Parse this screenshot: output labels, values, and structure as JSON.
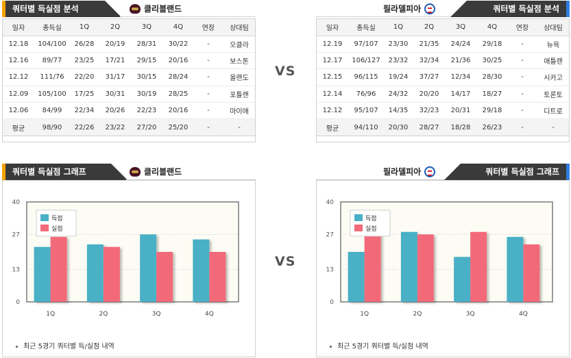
{
  "vs_label": "VS",
  "columns": [
    "일자",
    "총득실",
    "1Q",
    "2Q",
    "3Q",
    "4Q",
    "연장",
    "상대팀"
  ],
  "left": {
    "section_title": "쿼터별 득실점 분석",
    "team": "클리블랜드",
    "rows": [
      [
        "12.18",
        "104/100",
        "26/28",
        "20/19",
        "28/31",
        "30/22",
        "-",
        "오클라"
      ],
      [
        "12.16",
        "89/77",
        "23/25",
        "17/21",
        "29/15",
        "20/16",
        "-",
        "보스톤"
      ],
      [
        "12.12",
        "111/76",
        "22/20",
        "31/17",
        "30/15",
        "28/24",
        "-",
        "올랜도"
      ],
      [
        "12.09",
        "105/100",
        "17/25",
        "30/31",
        "30/19",
        "28/25",
        "-",
        "포틀랜"
      ],
      [
        "12.06",
        "84/99",
        "22/34",
        "20/26",
        "22/23",
        "20/16",
        "-",
        "마이애"
      ]
    ],
    "avg": [
      "평균",
      "98/90",
      "22/26",
      "23/22",
      "27/20",
      "25/20",
      "-",
      "-"
    ],
    "accent_color": "#f5a300"
  },
  "right": {
    "section_title": "쿼터별 득실점 분석",
    "team": "필라델피아",
    "rows": [
      [
        "12.19",
        "97/107",
        "23/30",
        "21/35",
        "24/24",
        "29/18",
        "-",
        "뉴욕"
      ],
      [
        "12.17",
        "106/127",
        "23/32",
        "32/34",
        "21/36",
        "30/25",
        "-",
        "애틀랜"
      ],
      [
        "12.15",
        "96/115",
        "19/24",
        "37/27",
        "12/34",
        "28/30",
        "-",
        "시카고"
      ],
      [
        "12.14",
        "76/96",
        "24/32",
        "20/20",
        "14/17",
        "18/27",
        "-",
        "토론토"
      ],
      [
        "12.12",
        "95/107",
        "14/35",
        "32/23",
        "20/31",
        "29/18",
        "-",
        "디트로"
      ]
    ],
    "avg": [
      "평균",
      "94/110",
      "20/30",
      "28/27",
      "18/28",
      "26/23",
      "-",
      "-"
    ],
    "accent_color": "#2f7de0"
  },
  "graph_left": {
    "section_title": "쿼터별 득실점 그래프",
    "team": "클리블랜드",
    "note": "최근 5경기 쿼터별 득/실점 내역"
  },
  "graph_right": {
    "section_title": "쿼터별 득실점 그래프",
    "team": "필라델피아",
    "note": "최근 5경기 쿼터별 득/실점 내역"
  },
  "chart_data": [
    {
      "type": "bar",
      "categories": [
        "1Q",
        "2Q",
        "3Q",
        "4Q"
      ],
      "series": [
        {
          "name": "득점",
          "values": [
            22,
            23,
            27,
            25
          ],
          "color": "#4ab0c6"
        },
        {
          "name": "실점",
          "values": [
            26,
            22,
            20,
            20
          ],
          "color": "#f26b7a"
        }
      ],
      "yticks": [
        0,
        13,
        27,
        40
      ],
      "ylim": [
        0,
        40
      ],
      "legend": "top-left"
    },
    {
      "type": "bar",
      "categories": [
        "1Q",
        "2Q",
        "3Q",
        "4Q"
      ],
      "series": [
        {
          "name": "득점",
          "values": [
            20,
            28,
            18,
            26
          ],
          "color": "#4ab0c6"
        },
        {
          "name": "실점",
          "values": [
            30,
            27,
            28,
            23
          ],
          "color": "#f26b7a"
        }
      ],
      "yticks": [
        0,
        13,
        27,
        40
      ],
      "ylim": [
        0,
        40
      ],
      "legend": "top-left"
    }
  ]
}
